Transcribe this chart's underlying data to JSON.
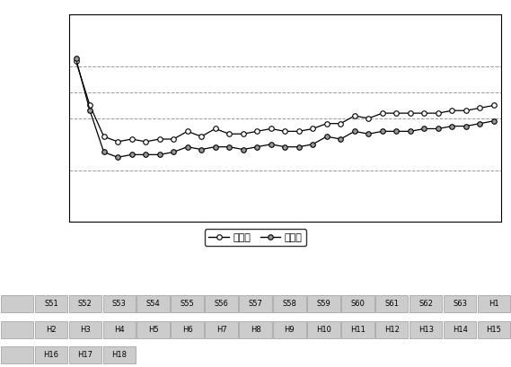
{
  "labels": [
    "S51",
    "S52",
    "S53",
    "S54",
    "S55",
    "S56",
    "S57",
    "S58",
    "S59",
    "S60",
    "S61",
    "S62",
    "S63",
    "H1",
    "H2",
    "H3",
    "H4",
    "H5",
    "H6",
    "H7",
    "H8",
    "H9",
    "H10",
    "H11",
    "H12",
    "H13",
    "H14",
    "H15",
    "H16",
    "H17",
    "H18"
  ],
  "ippan": [
    0.082,
    0.065,
    0.053,
    0.051,
    0.052,
    0.051,
    0.052,
    0.052,
    0.055,
    0.053,
    0.056,
    0.054,
    0.054,
    0.055,
    0.056,
    0.055,
    0.055,
    0.056,
    0.058,
    0.058,
    0.061,
    0.06,
    0.062,
    0.062,
    0.062,
    0.062,
    0.062,
    0.063,
    0.063,
    0.064,
    0.065
  ],
  "jihai": [
    0.083,
    0.063,
    0.047,
    0.045,
    0.046,
    0.046,
    0.046,
    0.047,
    0.049,
    0.048,
    0.049,
    0.049,
    0.048,
    0.049,
    0.05,
    0.049,
    0.049,
    0.05,
    0.053,
    0.052,
    0.055,
    0.054,
    0.055,
    0.055,
    0.055,
    0.056,
    0.056,
    0.057,
    0.057,
    0.058,
    0.059
  ],
  "ylim": [
    0.02,
    0.1
  ],
  "yticks": [
    0.04,
    0.06,
    0.07,
    0.08
  ],
  "bg_color": "#ffffff",
  "plot_bg_color": "#ffffff",
  "outer_bg": "#ffffff",
  "grid_color": "#999999",
  "line_color": "#000000",
  "ippan_marker_face": "#ffffff",
  "jihai_marker_face": "#999999",
  "legend_ippan": "一般局",
  "legend_jihai": "自排局",
  "row1_labels": [
    "S51",
    "S52",
    "S53",
    "S54",
    "S55",
    "S56",
    "S57",
    "S58",
    "S59",
    "S60",
    "S61",
    "S62",
    "S63",
    "H1"
  ],
  "row2_labels": [
    "H2",
    "H3",
    "H4",
    "H5",
    "H6",
    "H7",
    "H8",
    "H9",
    "H10",
    "H11",
    "H12",
    "H13",
    "H14",
    "H15"
  ],
  "row3_labels": [
    "H16",
    "H17",
    "H18"
  ],
  "cell_bg": "#cccccc",
  "cell_edge": "#999999",
  "font_size_label": 6.0,
  "font_size_legend": 8
}
